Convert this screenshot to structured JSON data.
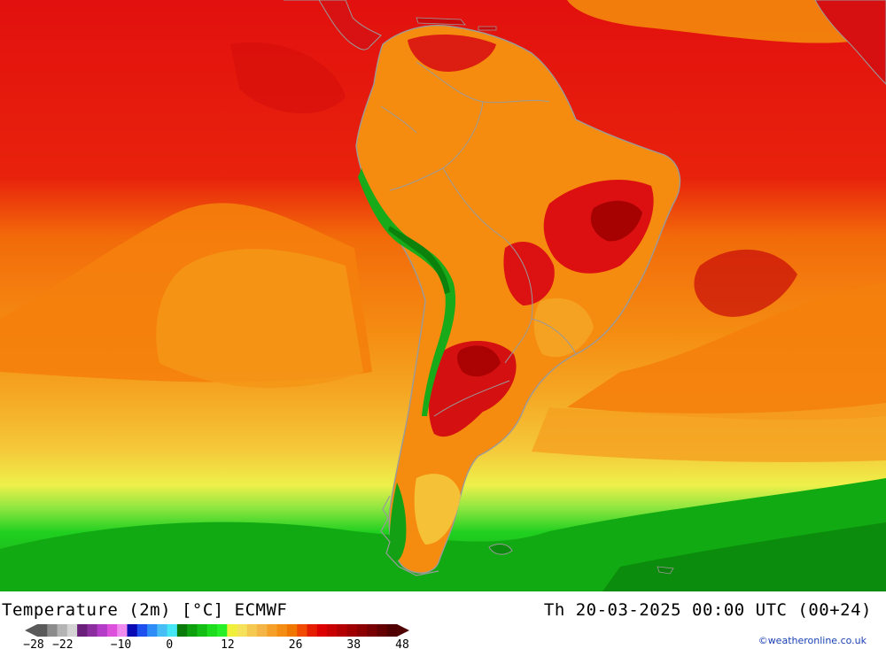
{
  "title_left": "Temperature (2m) [°C] ECMWF",
  "title_right": "Th 20-03-2025 00:00 UTC (00+24)",
  "credit": "©weatheronline.co.uk",
  "legend": {
    "colors": [
      "#5a5a5a",
      "#8c8c8c",
      "#b4b4b4",
      "#d4d4d4",
      "#6a1f7a",
      "#8c2da0",
      "#b43cc8",
      "#dc50dc",
      "#f08cf0",
      "#0a0ab4",
      "#1e50f0",
      "#2d8cf5",
      "#46bef5",
      "#46e6f5",
      "#0a7a0a",
      "#0ea00e",
      "#14be14",
      "#1edc1e",
      "#28f028",
      "#f0f03c",
      "#f5e15a",
      "#f5c850",
      "#f5b446",
      "#f5a028",
      "#f58c14",
      "#f07800",
      "#f04b00",
      "#e61e00",
      "#dc0000",
      "#c80000",
      "#b40000",
      "#a00000",
      "#8c0000",
      "#780000",
      "#640000",
      "#500000"
    ],
    "ticks": [
      "-28",
      "-22",
      "-10",
      "0",
      "12",
      "26",
      "38",
      "48"
    ],
    "min": -28,
    "max": 48
  },
  "map": {
    "region": "South America",
    "variable": "2m temperature",
    "zone_colors": {
      "tropical_ocean": "#e60f0f",
      "subtropical_ocean": "#f5780a",
      "midlat_ocean": "#f5a01e",
      "cool_ocean": "#f5dc3c",
      "cold_ocean": "#1ec81e",
      "land": "#f58c0f",
      "hot_land": "#dc1414",
      "andes": "#14a014",
      "coast": "#9a9a9a"
    }
  }
}
